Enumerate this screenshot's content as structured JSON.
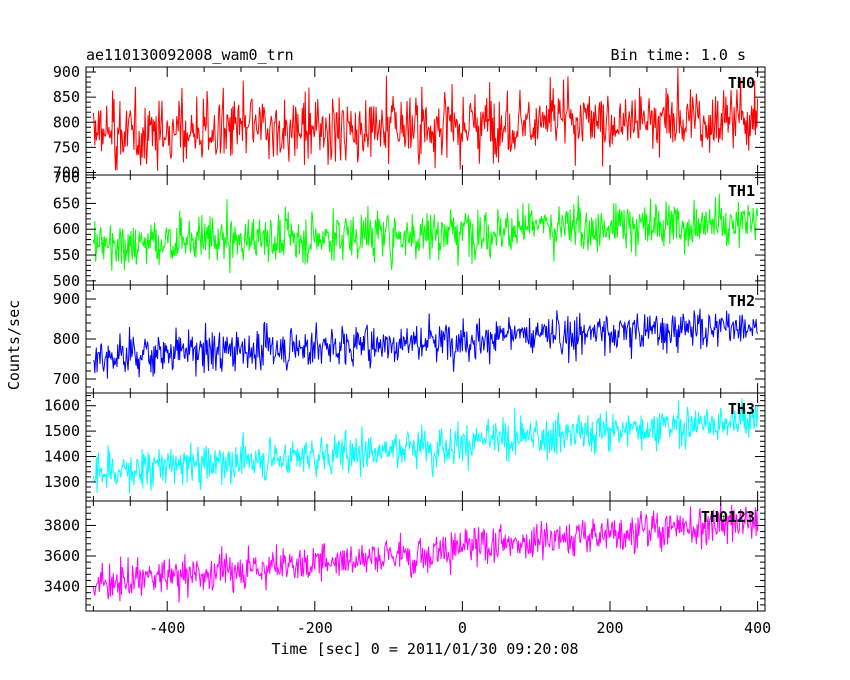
{
  "header": {
    "title": "ae110130092008_wam0_trn",
    "bin_time": "Bin time: 1.0 s"
  },
  "chart_data": {
    "type": "line",
    "xlabel": "Time [sec] 0 = 2011/01/30 09:20:08",
    "ylabel": "Counts/sec",
    "xlim": [
      -510,
      410
    ],
    "xticks": [
      -400,
      -200,
      0,
      200,
      400
    ],
    "x_range": [
      -500,
      400
    ],
    "bin_time_s": 1.0,
    "panels": [
      {
        "name": "TH0",
        "color": "#ff0000",
        "ylim": [
          695,
          910
        ],
        "yticks": [
          700,
          750,
          800,
          850,
          900
        ],
        "trend_start": 778,
        "trend_end": 810,
        "noise_sd": 38
      },
      {
        "name": "TH1",
        "color": "#00ff00",
        "ylim": [
          492,
          705
        ],
        "yticks": [
          500,
          550,
          600,
          650,
          700
        ],
        "trend_start": 570,
        "trend_end": 615,
        "noise_sd": 28
      },
      {
        "name": "TH2",
        "color": "#0000ff",
        "ylim": [
          665,
          935
        ],
        "yticks": [
          700,
          800,
          900
        ],
        "trend_start": 755,
        "trend_end": 835,
        "noise_sd": 30
      },
      {
        "name": "TH3",
        "color": "#00ffff",
        "ylim": [
          1225,
          1650
        ],
        "yticks": [
          1300,
          1400,
          1500,
          1600
        ],
        "trend_start": 1335,
        "trend_end": 1550,
        "noise_sd": 45
      },
      {
        "name": "TH0123",
        "color": "#ff00ff",
        "ylim": [
          3240,
          3960
        ],
        "yticks": [
          3400,
          3600,
          3800
        ],
        "trend_start": 3420,
        "trend_end": 3840,
        "noise_sd": 70
      }
    ]
  }
}
